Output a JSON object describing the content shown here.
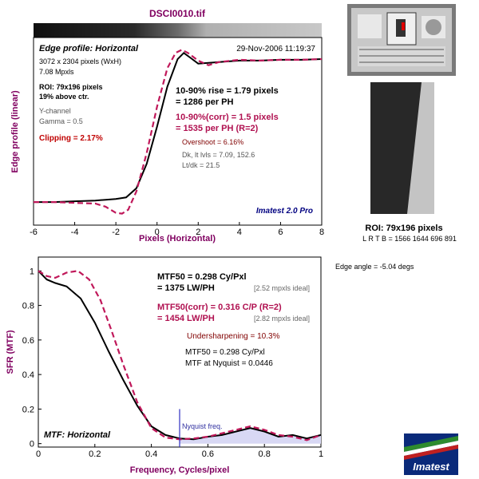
{
  "title": "DSCI0010.tif",
  "top_panel": {
    "heading": "Edge profile: Horizontal",
    "date": "29-Nov-2006 11:19:37",
    "info": [
      "3072 x 2304 pixels (WxH)",
      "7.08 Mpxls"
    ],
    "roi": [
      "ROI: 79x196 pixels",
      "19% above ctr."
    ],
    "channel": [
      "Y-channel",
      "Gamma = 0.5"
    ],
    "clipping": "Clipping =  2.17%",
    "rise": [
      "10-90% rise = 1.79 pixels",
      "= 1286 per PH"
    ],
    "rise_corr": [
      "10-90%(corr) = 1.5 pixels",
      "= 1535 per PH  (R=2)"
    ],
    "overshoot": "Overshoot = 6.16%",
    "levels": [
      "Dk, lt lvls = 7.09, 152.6",
      "Lt/dk = 21.5"
    ],
    "brand": "Imatest 2.0 Pro"
  },
  "bottom_panel": {
    "heading": "MTF: Horizontal",
    "mtf50": [
      "MTF50 = 0.298 Cy/Pxl",
      "= 1375 LW/PH"
    ],
    "mtf50_ideal": "[2.52 mpxls ideal]",
    "mtf50_corr": [
      "MTF50(corr) = 0.316 C/P  (R=2)",
      "= 1454 LW/PH"
    ],
    "mtf50_corr_ideal": "[2.82 mpxls ideal]",
    "undersharpening": "Undersharpening = 10.3%",
    "summary": [
      "MTF50 = 0.298 Cy/Pxl",
      "MTF at Nyquist = 0.0446"
    ],
    "nyquist_label": "Nyquist freq."
  },
  "side": {
    "roi_caption": "ROI: 79x196 pixels",
    "lrtb": "L R  T B = 1566 1644  696 891",
    "edge_angle": "Edge angle = -5.04 degs",
    "logo_text": "Imatest"
  },
  "chart_data": [
    {
      "type": "line",
      "xlabel": "Pixels (Horizontal)",
      "ylabel": "Edge profile (linear)",
      "xlim": [
        -6,
        8
      ],
      "xticks": [
        -6,
        -4,
        -2,
        0,
        2,
        4,
        6,
        8
      ],
      "series": [
        {
          "color": "#000000",
          "x": [
            -6,
            -5,
            -4,
            -3,
            -2.5,
            -2,
            -1.5,
            -1,
            -0.5,
            0,
            0.5,
            1,
            1.3,
            1.6,
            2,
            2.5,
            3,
            4,
            5,
            6,
            7,
            8
          ],
          "y": [
            0.03,
            0.03,
            0.035,
            0.04,
            0.045,
            0.05,
            0.06,
            0.12,
            0.28,
            0.52,
            0.78,
            0.96,
            1.0,
            0.97,
            0.93,
            0.935,
            0.94,
            0.95,
            0.95,
            0.955,
            0.955,
            0.96
          ]
        },
        {
          "color": "#c0185a",
          "x": [
            -6,
            -5,
            -4,
            -3,
            -2.5,
            -2,
            -1.7,
            -1.4,
            -1,
            -0.5,
            0,
            0.5,
            0.9,
            1.2,
            1.5,
            2,
            2.5,
            3,
            4,
            5,
            6,
            7,
            8
          ],
          "y": [
            0.03,
            0.03,
            0.025,
            0.02,
            0.0,
            -0.04,
            -0.045,
            -0.02,
            0.1,
            0.35,
            0.65,
            0.9,
            1.0,
            1.02,
            1.0,
            0.95,
            0.92,
            0.94,
            0.955,
            0.95,
            0.955,
            0.955,
            0.96
          ]
        }
      ]
    },
    {
      "type": "line",
      "xlabel": "Frequency, Cycles/pixel",
      "ylabel": "SFR (MTF)",
      "xlim": [
        0,
        1
      ],
      "ylim": [
        0,
        1
      ],
      "xticks": [
        0,
        0.2,
        0.4,
        0.6,
        0.8,
        1
      ],
      "yticks": [
        0,
        0.2,
        0.4,
        0.6,
        0.8,
        1
      ],
      "nyquist": 0.5,
      "series": [
        {
          "color": "#000000",
          "x": [
            0,
            0.03,
            0.06,
            0.1,
            0.15,
            0.2,
            0.25,
            0.3,
            0.35,
            0.4,
            0.45,
            0.5,
            0.55,
            0.6,
            0.65,
            0.7,
            0.75,
            0.8,
            0.85,
            0.9,
            0.95,
            1.0
          ],
          "y": [
            1.0,
            0.95,
            0.93,
            0.91,
            0.84,
            0.7,
            0.53,
            0.37,
            0.22,
            0.1,
            0.05,
            0.03,
            0.025,
            0.04,
            0.05,
            0.07,
            0.09,
            0.07,
            0.04,
            0.05,
            0.03,
            0.05
          ]
        },
        {
          "color": "#c0185a",
          "x": [
            0,
            0.03,
            0.06,
            0.1,
            0.14,
            0.18,
            0.22,
            0.26,
            0.3,
            0.35,
            0.4,
            0.45,
            0.5,
            0.55,
            0.6,
            0.65,
            0.7,
            0.75,
            0.8,
            0.85,
            0.9,
            0.95,
            1.0
          ],
          "y": [
            1.0,
            0.97,
            0.96,
            0.99,
            1.0,
            0.95,
            0.83,
            0.65,
            0.46,
            0.24,
            0.09,
            0.035,
            0.025,
            0.03,
            0.04,
            0.06,
            0.08,
            0.1,
            0.08,
            0.05,
            0.04,
            0.02,
            0.05
          ]
        }
      ]
    }
  ]
}
